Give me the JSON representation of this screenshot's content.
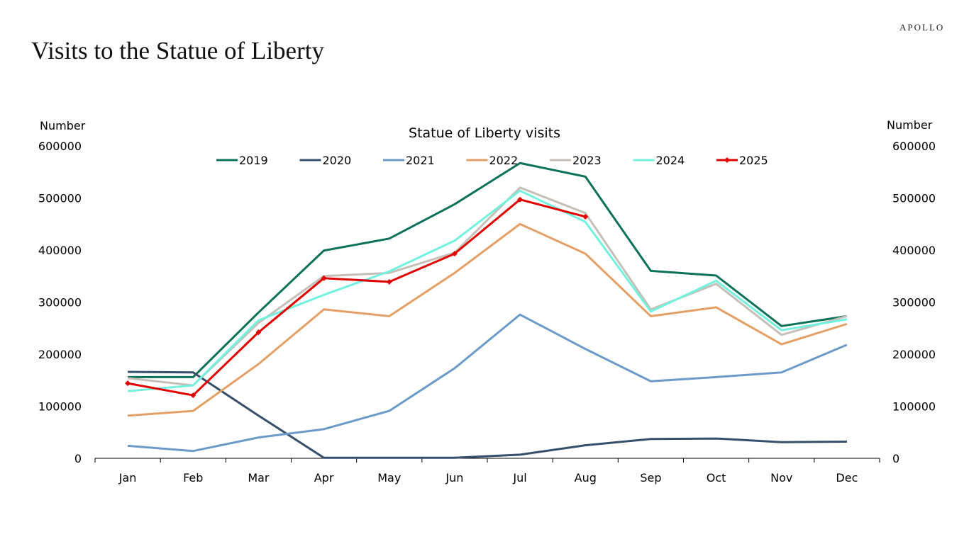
{
  "header": {
    "title": "Visits to the Statue of Liberty",
    "logo": "APOLLO"
  },
  "chart_data": {
    "type": "line",
    "title": "Statue of Liberty visits",
    "ylabel_left": "Number",
    "ylabel_right": "Number",
    "ylim": [
      0,
      600000
    ],
    "yticks": [
      0,
      100000,
      200000,
      300000,
      400000,
      500000,
      600000
    ],
    "categories": [
      "Jan",
      "Feb",
      "Mar",
      "Apr",
      "May",
      "Jun",
      "Jul",
      "Aug",
      "Sep",
      "Oct",
      "Nov",
      "Dec"
    ],
    "legend_position": "top",
    "grid": false,
    "series": [
      {
        "name": "2019",
        "color": "#0b7158",
        "values": [
          156000,
          156000,
          280000,
          399000,
          422000,
          488000,
          567000,
          541000,
          360000,
          351000,
          254000,
          273000
        ]
      },
      {
        "name": "2020",
        "color": "#354f6b",
        "values": [
          166000,
          165000,
          82000,
          1000,
          1000,
          1000,
          7000,
          25000,
          37000,
          38000,
          31000,
          32000
        ]
      },
      {
        "name": "2021",
        "color": "#6b9ac8",
        "values": [
          24000,
          14000,
          40000,
          56000,
          91000,
          173000,
          276000,
          210000,
          148000,
          156000,
          165000,
          218000
        ]
      },
      {
        "name": "2022",
        "color": "#e39f65",
        "values": [
          82000,
          91000,
          181000,
          286000,
          273000,
          356000,
          450000,
          393000,
          273000,
          290000,
          219000,
          258000
        ]
      },
      {
        "name": "2023",
        "color": "#c5bfb8",
        "values": [
          154000,
          140000,
          260000,
          350000,
          356000,
          395000,
          520000,
          471000,
          286000,
          335000,
          237000,
          273000
        ]
      },
      {
        "name": "2024",
        "color": "#72f2de",
        "values": [
          129000,
          140000,
          265000,
          314000,
          359000,
          418000,
          514000,
          454000,
          282000,
          341000,
          246000,
          267000
        ]
      },
      {
        "name": "2025",
        "color": "#e00000",
        "marker": "diamond",
        "values": [
          144000,
          121000,
          242000,
          346000,
          339000,
          393000,
          497000,
          464000,
          null,
          null,
          null,
          null
        ]
      }
    ]
  }
}
